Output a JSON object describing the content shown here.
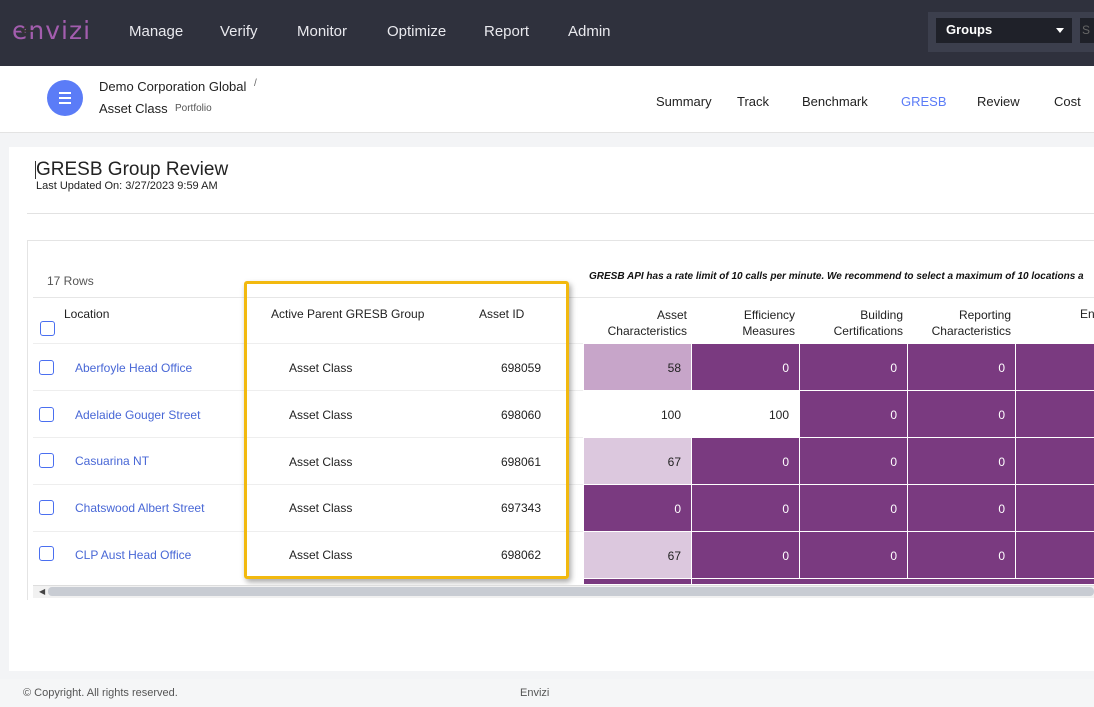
{
  "app": {
    "logo": "envizi"
  },
  "nav": {
    "items": [
      "Manage",
      "Verify",
      "Monitor",
      "Optimize",
      "Report",
      "Admin"
    ],
    "groups_select": "Groups",
    "groups_extra": "S"
  },
  "header": {
    "breadcrumb_1": "Demo Corporation Global",
    "breadcrumb_sep": "/",
    "breadcrumb_2": "Asset Class",
    "breadcrumb_2_sub": "Portfolio",
    "tabs": [
      "Summary",
      "Track",
      "Benchmark",
      "GRESB",
      "Review",
      "Cost"
    ],
    "active_tab": "GRESB"
  },
  "page": {
    "title": "GRESB Group Review",
    "last_updated": "Last Updated On: 3/27/2023 9:59 AM",
    "rows_count": "17 Rows",
    "api_note": "GRESB API has a rate limit of 10 calls per minute. We recommend to select a maximum of 10 locations a"
  },
  "table": {
    "headers": {
      "location": "Location",
      "active_parent": "Active Parent GRESB Group",
      "asset_id": "Asset ID",
      "asset_characteristics": [
        "Asset",
        "Characteristics"
      ],
      "efficiency_measures": [
        "Efficiency",
        "Measures"
      ],
      "building_certifications": [
        "Building",
        "Certifications"
      ],
      "reporting_characteristics": [
        "Reporting",
        "Characteristics"
      ],
      "en": "En"
    },
    "rows": [
      {
        "location": "Aberfoyle Head Office",
        "group": "Asset Class",
        "asset_id": "698059",
        "asset_char": "58",
        "eff": "0",
        "bldg": "0",
        "rep": "0"
      },
      {
        "location": "Adelaide Gouger Street",
        "group": "Asset Class",
        "asset_id": "698060",
        "asset_char": "100",
        "eff": "100",
        "bldg": "0",
        "rep": "0"
      },
      {
        "location": "Casuarina NT",
        "group": "Asset Class",
        "asset_id": "698061",
        "asset_char": "67",
        "eff": "0",
        "bldg": "0",
        "rep": "0"
      },
      {
        "location": "Chatswood Albert Street",
        "group": "Asset Class",
        "asset_id": "697343",
        "asset_char": "0",
        "eff": "0",
        "bldg": "0",
        "rep": "0"
      },
      {
        "location": "CLP Aust Head Office",
        "group": "Asset Class",
        "asset_id": "698062",
        "asset_char": "67",
        "eff": "0",
        "bldg": "0",
        "rep": "0"
      }
    ]
  },
  "colors": {
    "dark": "#7a3a80",
    "mid": "#c7a5c9",
    "light": "#dcc8de",
    "highlight": "#f2b90f",
    "accent": "#5b7cf7"
  },
  "footer": {
    "copyright": "© Copyright. All rights reserved.",
    "brand": "Envizi"
  }
}
